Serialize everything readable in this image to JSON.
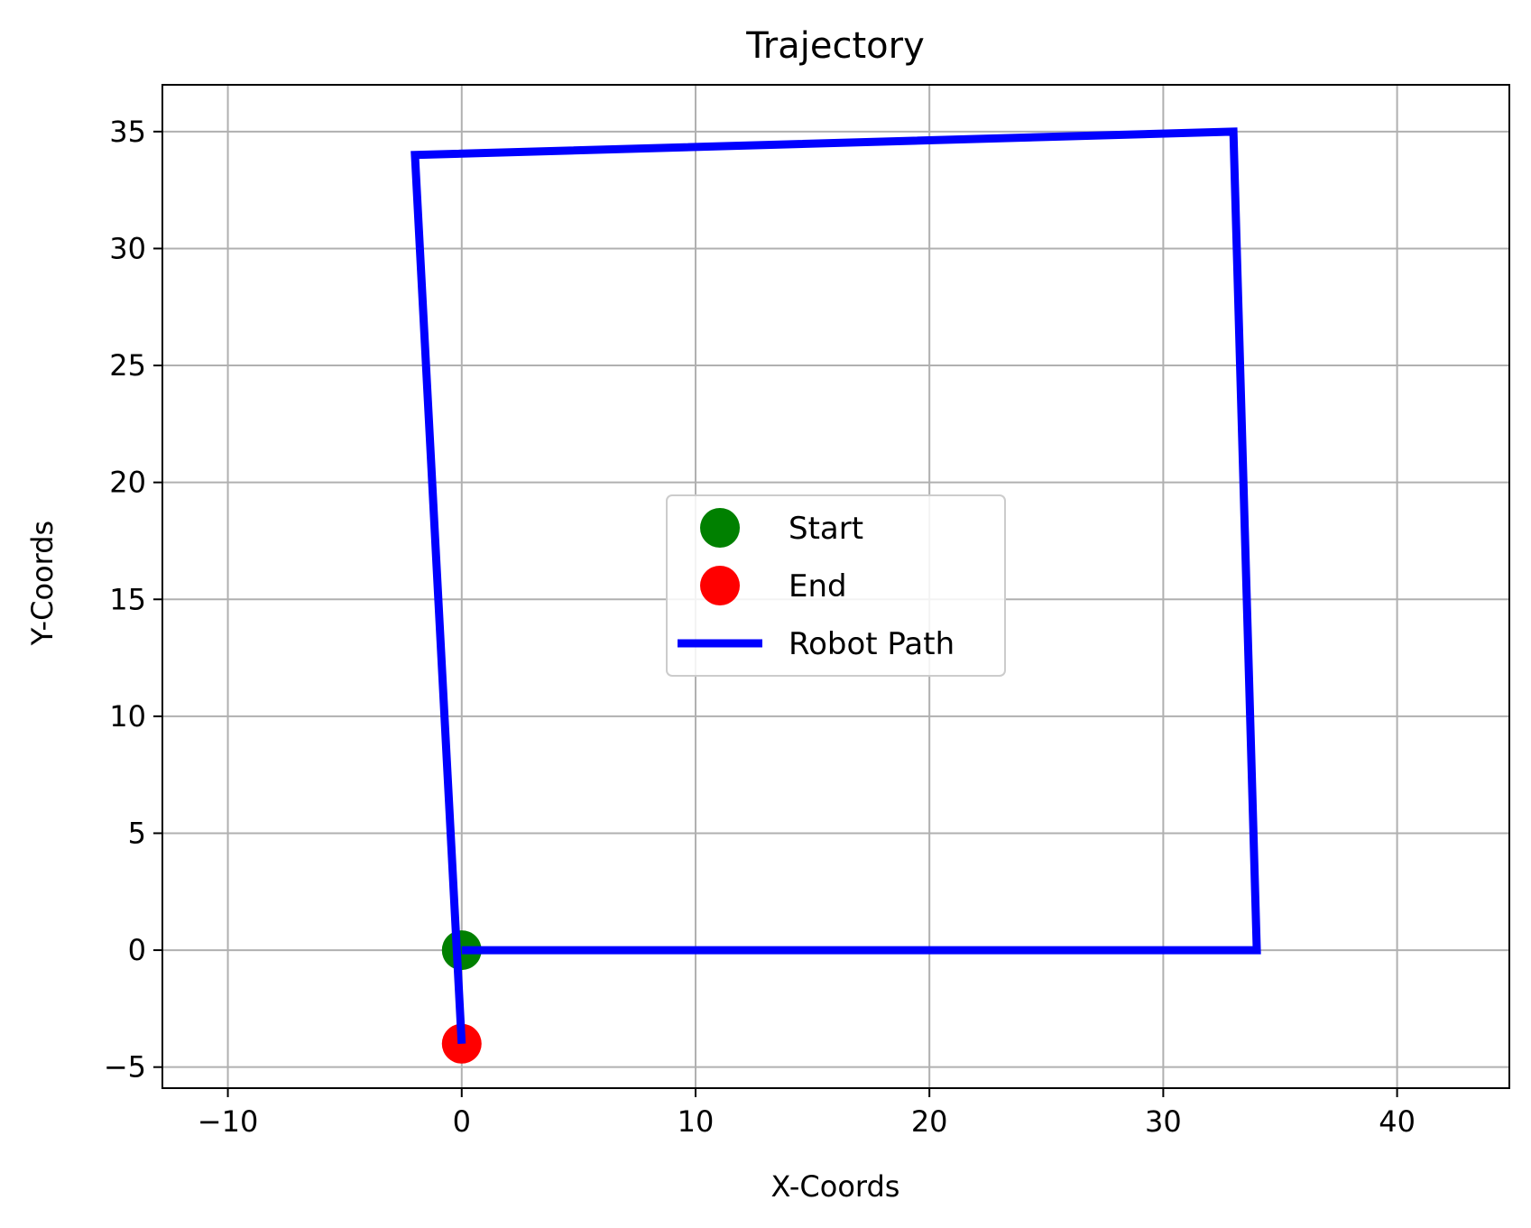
{
  "chart_data": {
    "type": "line",
    "title": "Trajectory",
    "xlabel": "X-Coords",
    "ylabel": "Y-Coords",
    "xlim": [
      -12.8,
      44.8
    ],
    "ylim": [
      -5.9,
      37
    ],
    "xticks": [
      -10,
      0,
      10,
      20,
      30,
      40
    ],
    "yticks": [
      -5,
      0,
      5,
      10,
      15,
      20,
      25,
      30,
      35
    ],
    "xtick_labels": [
      "−10",
      "0",
      "10",
      "20",
      "30",
      "40"
    ],
    "ytick_labels": [
      "−5",
      "0",
      "5",
      "10",
      "15",
      "20",
      "25",
      "30",
      "35"
    ],
    "grid": true,
    "legend_position": "center",
    "series": [
      {
        "name": "Robot Path",
        "kind": "line",
        "color": "#0000ff",
        "x": [
          0,
          34,
          33,
          -2,
          0
        ],
        "y": [
          0,
          0,
          35,
          34,
          -4
        ]
      },
      {
        "name": "Start",
        "kind": "marker",
        "color": "#008000",
        "x": [
          0
        ],
        "y": [
          0
        ]
      },
      {
        "name": "End",
        "kind": "marker",
        "color": "#ff0000",
        "x": [
          0
        ],
        "y": [
          -4
        ]
      }
    ],
    "legend": [
      {
        "label": "Start",
        "kind": "marker",
        "color": "#008000"
      },
      {
        "label": "End",
        "kind": "marker",
        "color": "#ff0000"
      },
      {
        "label": "Robot Path",
        "kind": "line",
        "color": "#0000ff"
      }
    ]
  }
}
